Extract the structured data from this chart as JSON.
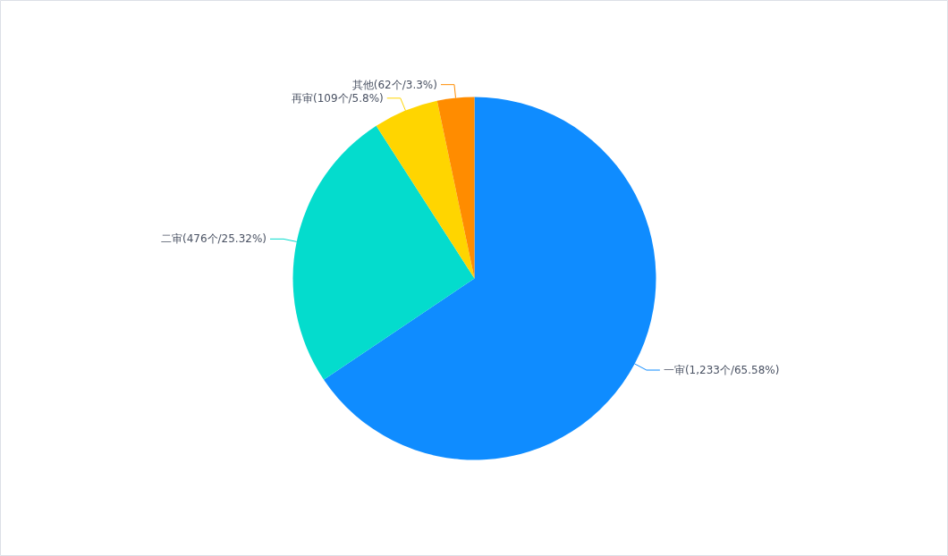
{
  "chart_data": {
    "type": "pie",
    "categories": [
      "一审",
      "二审",
      "再审",
      "其他"
    ],
    "values": [
      1233,
      476,
      109,
      62
    ],
    "colors": [
      "#0f8cff",
      "#04dccd",
      "#ffd500",
      "#ff8c00"
    ],
    "value_labels": [
      "(1,233个/65.58%)",
      "(476个/25.32%)",
      "(109个/5.8%)",
      "(62个/3.3%)"
    ]
  }
}
